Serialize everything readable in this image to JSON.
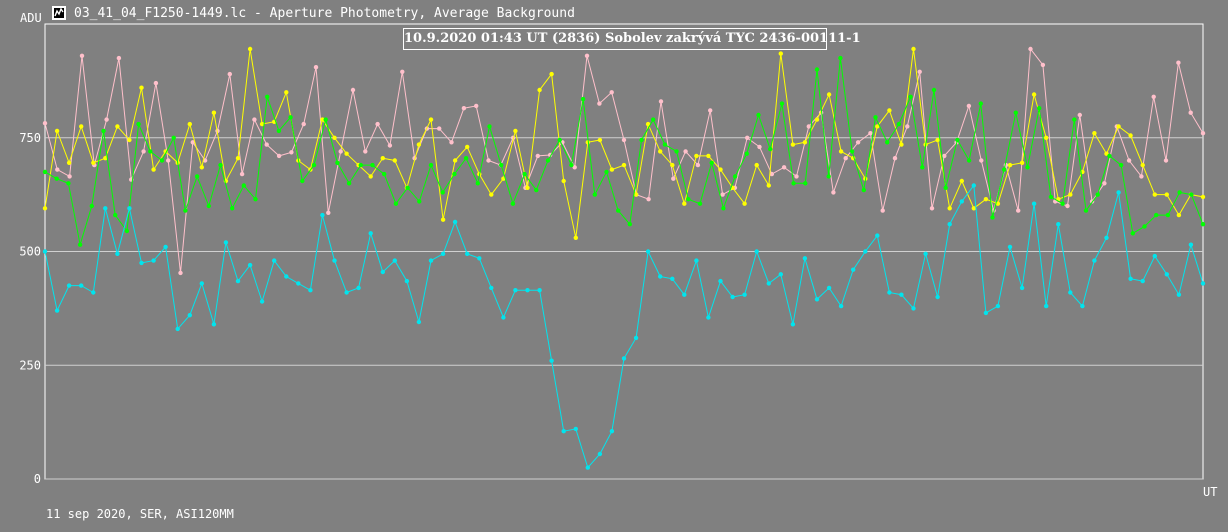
{
  "window": {
    "title": "03_41_04_F1250-1449.lc - Aperture Photometry, Average Background",
    "icon": "chart-app-icon"
  },
  "footer_text": "11 sep 2020, SER, ASI120MM",
  "chart_data": {
    "type": "line",
    "title": "10.9.2020 01:43 UT  (2836) Sobolev zakrývá TYC 2436-00111-1",
    "ylabel": "ADU",
    "xlabel": "UT",
    "ylim": [
      0,
      1000
    ],
    "yticks": [
      0,
      250,
      500,
      750
    ],
    "grid": true,
    "series": [
      {
        "color": "#ffc0cb",
        "values": [
          782,
          680,
          665,
          930,
          690,
          790,
          925,
          658,
          720,
          870,
          700,
          453,
          740,
          700,
          765,
          890,
          670,
          790,
          735,
          710,
          718,
          780,
          905,
          585,
          720,
          855,
          720,
          780,
          733,
          895,
          705,
          770,
          770,
          740,
          815,
          820,
          700,
          690,
          750,
          640,
          710,
          712,
          740,
          685,
          930,
          825,
          850,
          745,
          625,
          615,
          830,
          660,
          720,
          690,
          810,
          625,
          640,
          750,
          730,
          670,
          685,
          665,
          775,
          805,
          630,
          705,
          740,
          760,
          590,
          705,
          775,
          895,
          595,
          710,
          740,
          820,
          700,
          590,
          690,
          590,
          945,
          910,
          610,
          600,
          800,
          610,
          650,
          775,
          700,
          665,
          840,
          700,
          915,
          805,
          760
        ]
      },
      {
        "color": "#ffff00",
        "values": [
          595,
          765,
          695,
          775,
          695,
          705,
          775,
          745,
          860,
          680,
          720,
          695,
          780,
          685,
          805,
          655,
          705,
          945,
          780,
          785,
          850,
          700,
          680,
          790,
          750,
          715,
          690,
          665,
          705,
          700,
          640,
          735,
          790,
          570,
          700,
          730,
          670,
          625,
          660,
          765,
          640,
          855,
          890,
          655,
          530,
          740,
          745,
          680,
          690,
          625,
          780,
          720,
          690,
          605,
          710,
          710,
          680,
          640,
          605,
          690,
          645,
          935,
          735,
          740,
          790,
          845,
          720,
          705,
          660,
          775,
          810,
          735,
          945,
          735,
          745,
          595,
          655,
          595,
          615,
          605,
          690,
          695,
          845,
          750,
          615,
          625,
          675,
          760,
          715,
          775,
          755,
          690,
          625,
          625,
          580,
          625,
          620
        ]
      },
      {
        "color": "#00ff00",
        "values": [
          675,
          660,
          650,
          515,
          600,
          765,
          580,
          545,
          780,
          720,
          700,
          750,
          590,
          665,
          600,
          690,
          595,
          645,
          615,
          840,
          765,
          795,
          655,
          690,
          790,
          695,
          650,
          690,
          690,
          670,
          605,
          640,
          610,
          690,
          630,
          670,
          705,
          650,
          775,
          690,
          605,
          670,
          635,
          700,
          745,
          690,
          835,
          625,
          675,
          590,
          560,
          745,
          790,
          735,
          720,
          615,
          605,
          695,
          595,
          665,
          715,
          800,
          725,
          825,
          650,
          650,
          900,
          665,
          925,
          720,
          635,
          795,
          740,
          780,
          840,
          685,
          855,
          640,
          745,
          700,
          825,
          575,
          680,
          805,
          685,
          815,
          620,
          605,
          790,
          590,
          625,
          710,
          690,
          540,
          555,
          580,
          580,
          630,
          625,
          560
        ]
      },
      {
        "color": "#00e5ee",
        "values": [
          500,
          370,
          425,
          425,
          410,
          595,
          495,
          595,
          475,
          480,
          510,
          330,
          360,
          430,
          340,
          520,
          435,
          470,
          390,
          480,
          445,
          430,
          415,
          580,
          480,
          410,
          420,
          540,
          455,
          480,
          435,
          345,
          480,
          495,
          565,
          495,
          485,
          420,
          355,
          415,
          415,
          415,
          260,
          105,
          110,
          25,
          55,
          105,
          265,
          310,
          500,
          445,
          440,
          405,
          480,
          355,
          435,
          400,
          405,
          500,
          430,
          450,
          340,
          485,
          395,
          420,
          380,
          460,
          500,
          535,
          410,
          405,
          375,
          495,
          400,
          560,
          610,
          645,
          365,
          380,
          510,
          420,
          605,
          380,
          560,
          410,
          380,
          480,
          530,
          630,
          440,
          435,
          490,
          450,
          405,
          515,
          430
        ]
      }
    ]
  }
}
